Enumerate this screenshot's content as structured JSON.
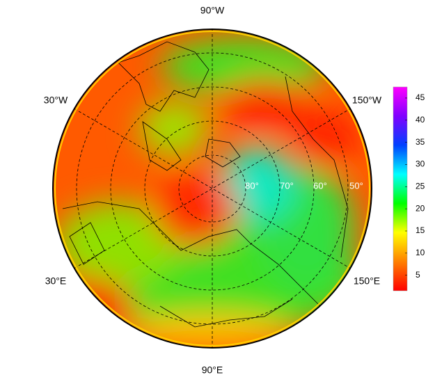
{
  "map": {
    "longitude_labels": [
      "90°W",
      "30°W",
      "150°W",
      "30°E",
      "150°E",
      "90°E"
    ],
    "latitude_labels": [
      "80°",
      "70°",
      "60°",
      "50°"
    ],
    "colorbar": {
      "range": [
        1.5,
        47.5
      ],
      "ticks": [
        5,
        10,
        15,
        20,
        25,
        30,
        35,
        40,
        45
      ],
      "colors": [
        "#ff0000",
        "#ff8000",
        "#ffff00",
        "#00ff00",
        "#00ffff",
        "#0040ff",
        "#8000ff",
        "#ff00ff"
      ]
    }
  }
}
